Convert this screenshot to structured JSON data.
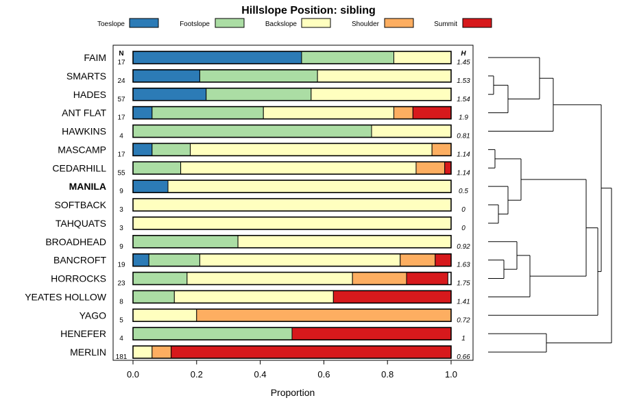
{
  "chart_data": {
    "type": "bar",
    "orientation": "horizontal",
    "stacked": true,
    "title": "Hillslope Position: sibling",
    "xlabel": "Proportion",
    "ylabel": "",
    "xlim": [
      0,
      1
    ],
    "xticks": [
      "0.0",
      "0.2",
      "0.4",
      "0.6",
      "0.8",
      "1.0"
    ],
    "xtick_values": [
      0,
      0.2,
      0.4,
      0.6,
      0.8,
      1.0
    ],
    "n_header": "N",
    "h_header": "H",
    "legend_position": "top",
    "highlight": "MANILA",
    "legend": [
      {
        "name": "Toeslope",
        "color": "#2c7bb6"
      },
      {
        "name": "Footslope",
        "color": "#abdda4"
      },
      {
        "name": "Backslope",
        "color": "#ffffbf"
      },
      {
        "name": "Shoulder",
        "color": "#fdae61"
      },
      {
        "name": "Summit",
        "color": "#d7191c"
      }
    ],
    "categories": [
      "FAIM",
      "SMARTS",
      "HADES",
      "ANT FLAT",
      "HAWKINS",
      "MASCAMP",
      "CEDARHILL",
      "MANILA",
      "SOFTBACK",
      "TAHQUATS",
      "BROADHEAD",
      "BANCROFT",
      "HORROCKS",
      "YEATES HOLLOW",
      "YAGO",
      "HENEFER",
      "MERLIN"
    ],
    "n": [
      "17",
      "24",
      "57",
      "17",
      "4",
      "17",
      "55",
      "9",
      "3",
      "3",
      "9",
      "19",
      "23",
      "8",
      "5",
      "4",
      "181"
    ],
    "h": [
      "1.45",
      "1.53",
      "1.54",
      "1.9",
      "0.81",
      "1.14",
      "1.14",
      "0.5",
      "0",
      "0",
      "0.92",
      "1.63",
      "1.75",
      "1.41",
      "0.72",
      "1",
      "0.66"
    ],
    "series": [
      {
        "name": "Toeslope",
        "values": [
          0.53,
          0.21,
          0.23,
          0.06,
          0,
          0.06,
          0,
          0.11,
          0,
          0,
          0,
          0.05,
          0,
          0,
          0,
          0,
          0
        ]
      },
      {
        "name": "Footslope",
        "values": [
          0.29,
          0.37,
          0.33,
          0.35,
          0.75,
          0.12,
          0.15,
          0,
          0,
          0,
          0.33,
          0.16,
          0.17,
          0.13,
          0,
          0.5,
          0
        ]
      },
      {
        "name": "Backslope",
        "values": [
          0.18,
          0.42,
          0.44,
          0.41,
          0.25,
          0.76,
          0.74,
          0.89,
          1.0,
          1.0,
          0.67,
          0.63,
          0.52,
          0.5,
          0.2,
          0,
          0.06
        ]
      },
      {
        "name": "Shoulder",
        "values": [
          0,
          0,
          0,
          0.06,
          0,
          0.06,
          0.09,
          0,
          0,
          0,
          0,
          0.11,
          0.17,
          0,
          0.8,
          0,
          0.06
        ]
      },
      {
        "name": "Summit",
        "values": [
          0,
          0,
          0,
          0.12,
          0,
          0,
          0.02,
          0,
          0,
          0,
          0,
          0.05,
          0.13,
          0.37,
          0,
          0.5,
          0.88
        ]
      }
    ],
    "dendrogram": "hierarchical clustering of the categories shown at right"
  }
}
